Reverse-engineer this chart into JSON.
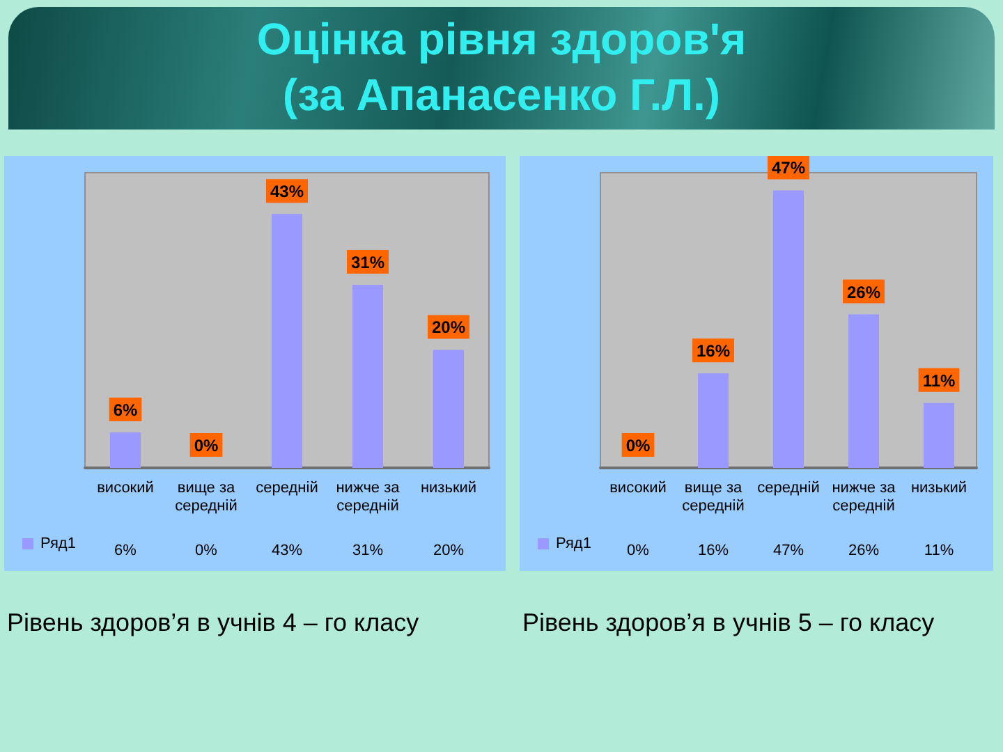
{
  "chart_data": [
    {
      "type": "bar",
      "title": "Оцінка рівня здоров'я (за Апанасенко Г.Л.)",
      "categories": [
        "високий",
        "вище за середній",
        "середній",
        "нижче за середній",
        "низький"
      ],
      "series": [
        {
          "name": "Ряд1",
          "color": "#9999ff",
          "values": [
            6,
            0,
            43,
            31,
            20
          ],
          "value_labels": [
            "6%",
            "0%",
            "43%",
            "31%",
            "20%"
          ]
        }
      ],
      "legend": "bottom left",
      "annotations": [
        "Рівень здоров’я в учнів 4 – го класу"
      ]
    },
    {
      "type": "bar",
      "categories": [
        "високий",
        "вище за середній",
        "середній",
        "нижче за середній",
        "низький"
      ],
      "series": [
        {
          "name": "Ряд1",
          "color": "#9999ff",
          "values": [
            0,
            16,
            47,
            26,
            11
          ],
          "value_labels": [
            "0%",
            "16%",
            "47%",
            "26%",
            "11%"
          ]
        }
      ],
      "legend": "bottom left",
      "annotations": [
        "Рівень здоров’я в учнів 5 – го класу"
      ]
    }
  ]
}
